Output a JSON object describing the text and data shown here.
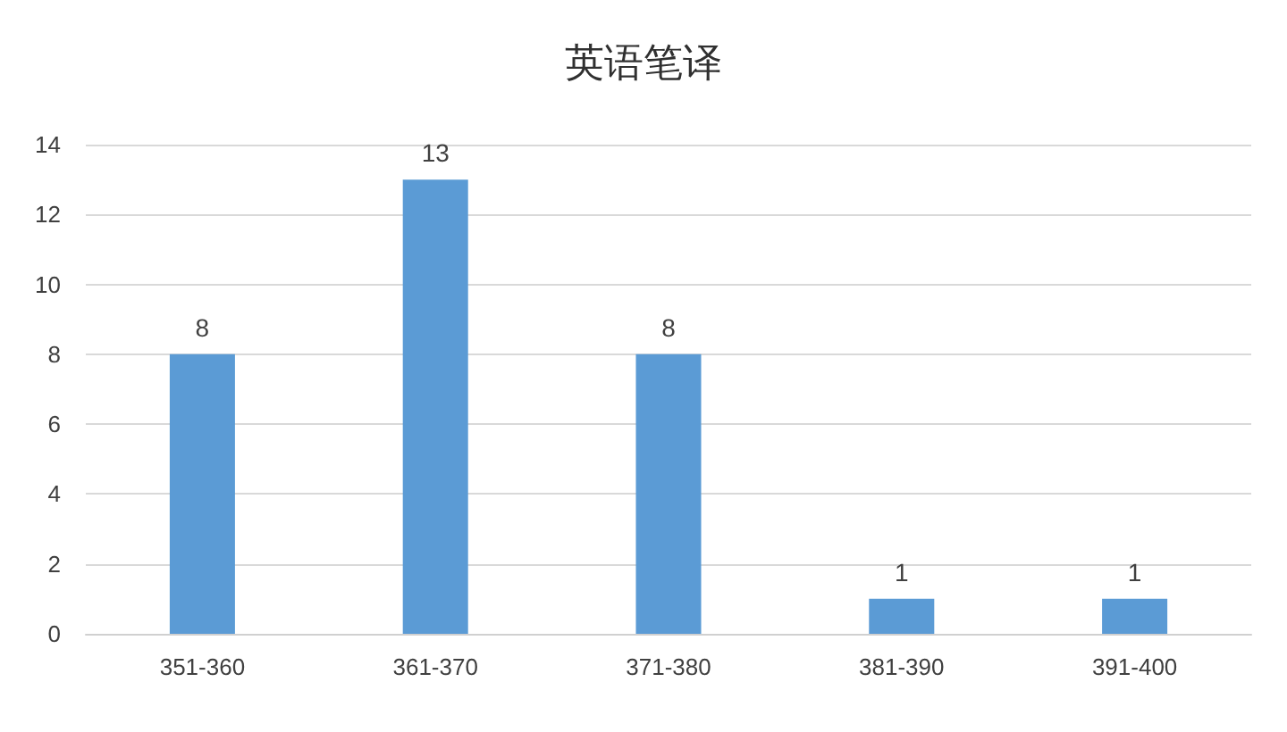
{
  "chart_data": {
    "type": "bar",
    "title": "英语笔译",
    "categories": [
      "351-360",
      "361-370",
      "371-380",
      "381-390",
      "391-400"
    ],
    "values": [
      8,
      13,
      8,
      1,
      1
    ],
    "color": "#5b9bd5",
    "ylim": [
      0,
      14
    ],
    "yticks": [
      0,
      2,
      4,
      6,
      8,
      10,
      12,
      14
    ],
    "grid": "y",
    "data_labels": true
  }
}
